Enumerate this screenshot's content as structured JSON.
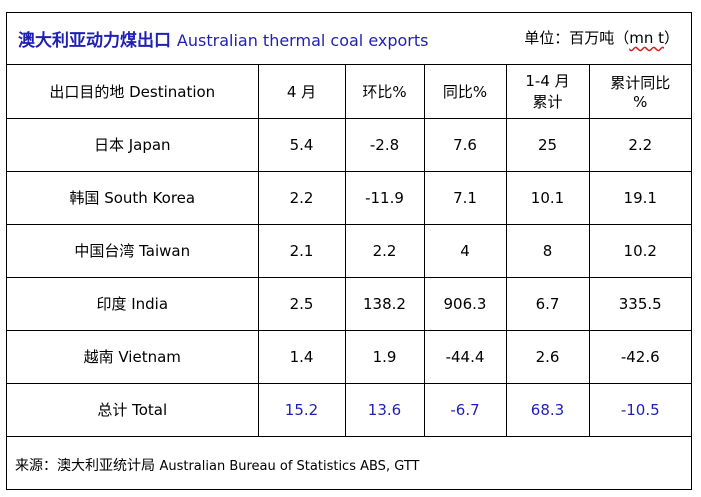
{
  "title": {
    "zh": "澳大利亚动力煤出口",
    "en": "Australian thermal coal exports"
  },
  "unit": {
    "prefix": "单位：百万吨（",
    "mnt": "mn t",
    "suffix": "）"
  },
  "headers": {
    "destination": "出口目的地 Destination",
    "april": "4 月",
    "mom": "环比%",
    "yoy": "同比%",
    "ytd_line1": "1-4 月",
    "ytd_line2": "累计",
    "ytd_yoy_line1": "累计同比",
    "ytd_yoy_line2": "%"
  },
  "rows": [
    {
      "country": "日本 Japan",
      "april": "5.4",
      "mom": "-2.8",
      "yoy": "7.6",
      "ytd": "25",
      "ytd_yoy": "2.2"
    },
    {
      "country": "韩国 South Korea",
      "april": "2.2",
      "mom": "-11.9",
      "yoy": "7.1",
      "ytd": "10.1",
      "ytd_yoy": "19.1"
    },
    {
      "country": "中国台湾 Taiwan",
      "april": "2.1",
      "mom": "2.2",
      "yoy": "4",
      "ytd": "8",
      "ytd_yoy": "10.2"
    },
    {
      "country": "印度 India",
      "april": "2.5",
      "mom": "138.2",
      "yoy": "906.3",
      "ytd": "6.7",
      "ytd_yoy": "335.5"
    },
    {
      "country": "越南 Vietnam",
      "april": "1.4",
      "mom": "1.9",
      "yoy": "-44.4",
      "ytd": "2.6",
      "ytd_yoy": "-42.6"
    },
    {
      "country": "总计 Total",
      "april": "15.2",
      "mom": "13.6",
      "yoy": "-6.7",
      "ytd": "68.3",
      "ytd_yoy": "-10.5"
    }
  ],
  "source": {
    "zh": "来源：澳大利亚统计局",
    "en": "Australian Bureau of Statistics ABS, GTT"
  },
  "colors": {
    "title": "#1f1fb4",
    "total_values": "#1f1fb4",
    "unit_underline": "#d02020"
  }
}
